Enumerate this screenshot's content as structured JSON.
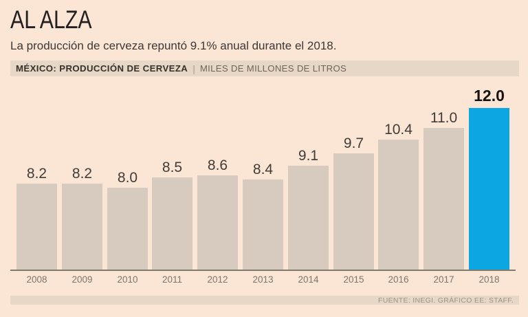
{
  "page": {
    "title": "AL ALZA",
    "subtitle": "La producción de cerveza repuntó 9.1% anual durante el 2018.",
    "header_bar": {
      "label": "MÉXICO: PRODUCCIÓN DE CERVEZA",
      "separator": "|",
      "units": "MILES DE MILLONES DE LITROS"
    },
    "footer": "FUENTE: INEGI. GRÁFICO EE: STAFF."
  },
  "colors": {
    "bg": "#fbe5d5",
    "strip": "#e6d7c7",
    "bar": "#d6cbbe",
    "highlight": "#0ca6e3",
    "axis": "#837a6f",
    "title-text": "#242021",
    "subtitle-text": "#3d3835",
    "header-bold": "#37302a",
    "header-sep": "#a99d8f",
    "header-units": "#6e6459",
    "value-text": "#423c37",
    "highlight-value-text": "#15120f",
    "year-text": "#80756b",
    "footer-text": "#9d9284"
  },
  "chart_data": {
    "type": "bar",
    "title": "MÉXICO: PRODUCCIÓN DE CERVEZA",
    "units_label": "MILES DE MILLONES DE LITROS",
    "categories": [
      "2008",
      "2009",
      "2010",
      "2011",
      "2012",
      "2013",
      "2014",
      "2015",
      "2016",
      "2017",
      "2018"
    ],
    "values": [
      8.2,
      8.2,
      8.0,
      8.5,
      8.6,
      8.4,
      9.1,
      9.7,
      10.4,
      11.0,
      12.0
    ],
    "highlight_index": 10,
    "value_labels_shown": true,
    "grid": false,
    "legend": false,
    "source": "FUENTE: INEGI. GRÁFICO EE: STAFF."
  }
}
